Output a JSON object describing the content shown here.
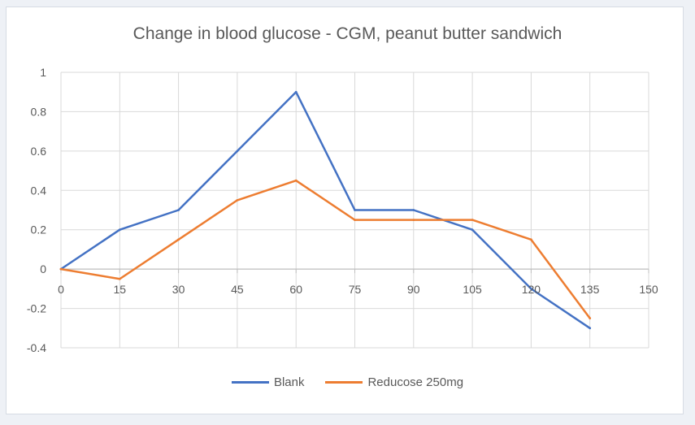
{
  "chart_data": {
    "type": "line",
    "title": "Change in blood glucose - CGM, peanut butter sandwich",
    "xlabel": "",
    "ylabel": "",
    "x": [
      0,
      15,
      30,
      45,
      60,
      75,
      90,
      105,
      120,
      135
    ],
    "x_ticks": [
      0,
      15,
      30,
      45,
      60,
      75,
      90,
      105,
      120,
      135,
      150
    ],
    "xlim": [
      0,
      150
    ],
    "ylim": [
      -0.4,
      1
    ],
    "y_ticks": [
      -0.4,
      -0.2,
      0,
      0.2,
      0.4,
      0.6,
      0.8,
      1
    ],
    "grid": true,
    "legend_position": "bottom",
    "series": [
      {
        "name": "Blank",
        "color": "#4472c4",
        "values": [
          0,
          0.2,
          0.3,
          0.6,
          0.9,
          0.3,
          0.3,
          0.2,
          -0.1,
          -0.3
        ]
      },
      {
        "name": "Reducose 250mg",
        "color": "#ed7d31",
        "values": [
          0,
          -0.05,
          0.15,
          0.35,
          0.45,
          0.25,
          0.25,
          0.25,
          0.15,
          -0.25
        ]
      }
    ]
  }
}
